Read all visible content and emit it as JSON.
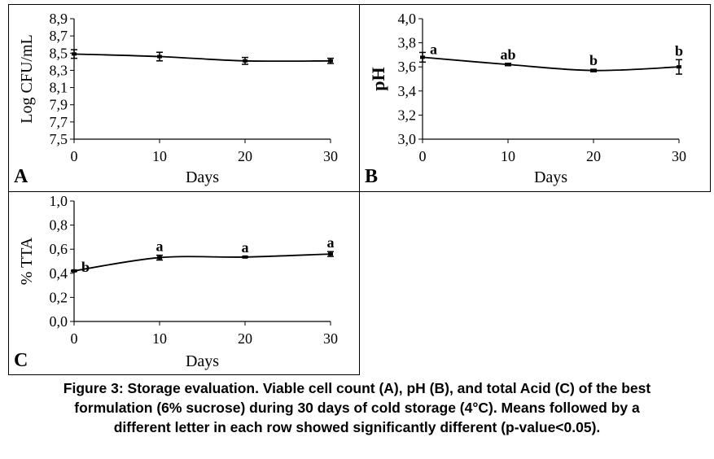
{
  "chart_data": [
    {
      "type": "line",
      "panel_label": "A",
      "xlabel": "Days",
      "ylabel": "Log CFU/mL",
      "x": [
        0,
        10,
        20,
        30
      ],
      "y": [
        8.49,
        8.46,
        8.41,
        8.41
      ],
      "error": [
        0.05,
        0.05,
        0.04,
        0.03
      ],
      "letters": [
        "",
        "",
        "",
        ""
      ],
      "xticks": [
        "0",
        "10",
        "20",
        "30"
      ],
      "yticks": [
        "7,5",
        "7,7",
        "7,9",
        "8,1",
        "8,3",
        "8,5",
        "8,7",
        "8,9"
      ],
      "ylim": [
        7.5,
        8.9
      ],
      "xlim": [
        0,
        30
      ]
    },
    {
      "type": "line",
      "panel_label": "B",
      "xlabel": "Days",
      "ylabel": "pH",
      "x": [
        0,
        10,
        20,
        30
      ],
      "y": [
        3.68,
        3.62,
        3.57,
        3.6
      ],
      "error": [
        0.04,
        0.01,
        0.01,
        0.06
      ],
      "letters": [
        "a",
        "ab",
        "b",
        "b"
      ],
      "xticks": [
        "0",
        "10",
        "20",
        "30"
      ],
      "yticks": [
        "3,0",
        "3,2",
        "3,4",
        "3,6",
        "3,8",
        "4,0"
      ],
      "ylim": [
        3.0,
        4.0
      ],
      "xlim": [
        0,
        30
      ]
    },
    {
      "type": "line",
      "panel_label": "C",
      "xlabel": "Days",
      "ylabel": "% TTA",
      "x": [
        0,
        10,
        20,
        30
      ],
      "y": [
        0.42,
        0.53,
        0.535,
        0.56
      ],
      "error": [
        0.005,
        0.02,
        0.005,
        0.02
      ],
      "letters": [
        "b",
        "a",
        "a",
        "a"
      ],
      "xticks": [
        "0",
        "10",
        "20",
        "30"
      ],
      "yticks": [
        "0,0",
        "0,2",
        "0,4",
        "0,6",
        "0,8",
        "1,0"
      ],
      "ylim": [
        0.0,
        1.0
      ],
      "xlim": [
        0,
        30
      ]
    }
  ],
  "caption": {
    "line1": "Figure 3: Storage evaluation. Viable cell count (A), pH (B), and total Acid (C) of the best",
    "line2": "formulation (6% sucrose) during 30 days of cold storage (4°C). Means followed by a",
    "line3": "different letter in each row showed significantly different (p-value<0.05)."
  }
}
